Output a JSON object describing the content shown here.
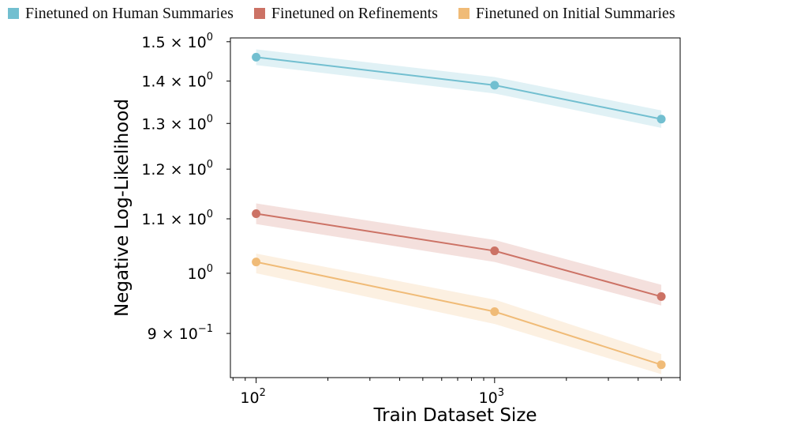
{
  "chart_data": {
    "type": "line",
    "xlabel": "Train Dataset Size",
    "ylabel": "Negative Log-Likelihood",
    "x_scale": "log",
    "y_scale": "log",
    "xlim": [
      78,
      6000
    ],
    "ylim": [
      0.833,
      1.51
    ],
    "grid": false,
    "legend_position": "top",
    "x_ticks": [
      {
        "value": 100,
        "base": "10",
        "exp": "2"
      },
      {
        "value": 1000,
        "base": "10",
        "exp": "3"
      }
    ],
    "y_ticks": [
      {
        "value": 0.9,
        "mant": "9 × 10",
        "exp": "−1"
      },
      {
        "value": 1.0,
        "mant": "10",
        "exp": "0"
      },
      {
        "value": 1.1,
        "mant": "1.1 × 10",
        "exp": "0"
      },
      {
        "value": 1.2,
        "mant": "1.2 × 10",
        "exp": "0"
      },
      {
        "value": 1.3,
        "mant": "1.3 × 10",
        "exp": "0"
      },
      {
        "value": 1.4,
        "mant": "1.4 × 10",
        "exp": "0"
      },
      {
        "value": 1.5,
        "mant": "1.5 × 10",
        "exp": "0"
      }
    ],
    "x": [
      100,
      1000,
      5000
    ],
    "series": [
      {
        "name": "Finetuned on Human Summaries",
        "color": "#72bfd0",
        "values": [
          1.46,
          1.39,
          1.31
        ],
        "band": [
          [
            1.48,
            1.44
          ],
          [
            1.41,
            1.37
          ],
          [
            1.33,
            1.29
          ]
        ]
      },
      {
        "name": "Finetuned on Refinements",
        "color": "#cc7265",
        "values": [
          1.11,
          1.04,
          0.96
        ],
        "band": [
          [
            1.13,
            1.09
          ],
          [
            1.06,
            1.02
          ],
          [
            0.98,
            0.945
          ]
        ]
      },
      {
        "name": "Finetuned on Initial Summaries",
        "color": "#f0bb77",
        "values": [
          1.02,
          0.935,
          0.852
        ],
        "band": [
          [
            1.035,
            1.0
          ],
          [
            0.955,
            0.915
          ],
          [
            0.868,
            0.838
          ]
        ]
      }
    ]
  }
}
